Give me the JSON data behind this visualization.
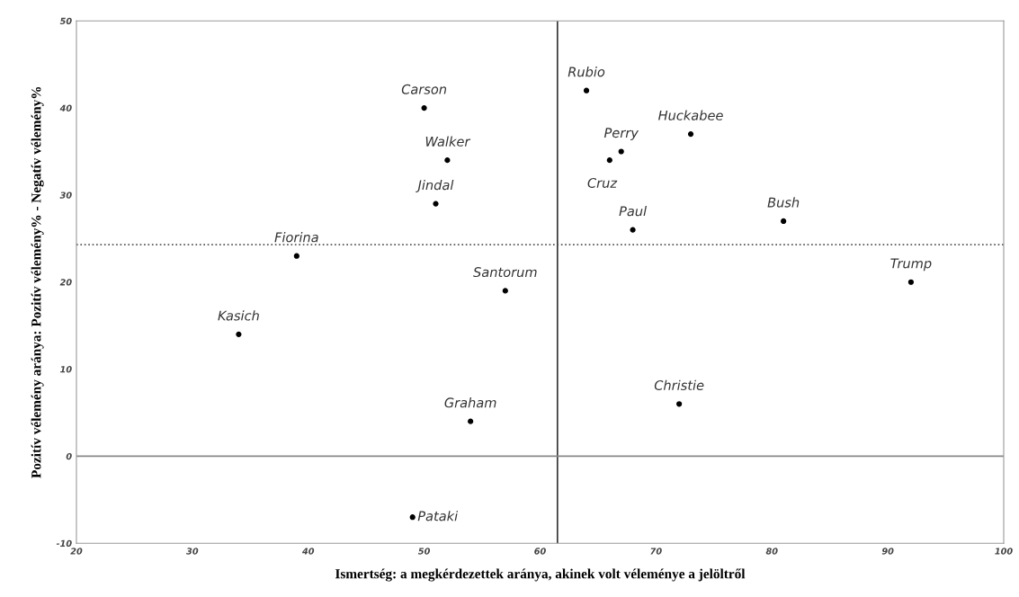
{
  "chart_data": {
    "type": "scatter",
    "xlabel": "Ismertség: a megkérdezettek aránya, akinek volt véleménye a jelöltről",
    "ylabel": "Pozitív vélemény aránya: Pozitív vélemény% - Negatív vélemény%",
    "x": [
      50,
      52,
      51,
      39,
      34,
      57,
      54,
      49,
      64,
      67,
      66,
      73,
      68,
      81,
      92,
      72
    ],
    "series": [
      {
        "color": "#000000",
        "values": [
          40,
          34,
          29,
          23,
          14,
          19,
          4,
          -7,
          42,
          35,
          34,
          37,
          26,
          27,
          20,
          6
        ]
      }
    ],
    "annotations": [
      {
        "text": "Carson",
        "x": 50,
        "y": 40
      },
      {
        "text": "Walker",
        "x": 52,
        "y": 34
      },
      {
        "text": "Jindal",
        "x": 51,
        "y": 29
      },
      {
        "text": "Fiorina",
        "x": 39,
        "y": 23
      },
      {
        "text": "Kasich",
        "x": 34,
        "y": 14
      },
      {
        "text": "Santorum",
        "x": 57,
        "y": 19
      },
      {
        "text": "Graham",
        "x": 54,
        "y": 4
      },
      {
        "text": "Pataki",
        "x": 49,
        "y": -7
      },
      {
        "text": "Rubio",
        "x": 64,
        "y": 42
      },
      {
        "text": "Perry",
        "x": 67,
        "y": 35
      },
      {
        "text": "Cruz",
        "x": 66,
        "y": 34
      },
      {
        "text": "Huckabee",
        "x": 73,
        "y": 37
      },
      {
        "text": "Paul",
        "x": 68,
        "y": 26
      },
      {
        "text": "Bush",
        "x": 81,
        "y": 27
      },
      {
        "text": "Trump",
        "x": 92,
        "y": 20
      },
      {
        "text": "Christie",
        "x": 72,
        "y": 6
      }
    ],
    "xlim": [
      20,
      100
    ],
    "xticks": [
      20,
      30,
      40,
      50,
      60,
      70,
      80,
      90,
      100
    ],
    "ylim": [
      -10,
      50
    ],
    "yticks": [
      -10,
      0,
      10,
      20,
      30,
      40,
      50
    ],
    "ref_lines": [
      {
        "axis": "x",
        "value": 61.5,
        "color": "#333333",
        "line_style": "solid"
      },
      {
        "axis": "y",
        "value": 24.3,
        "color": "#555555",
        "line_style": "dotted"
      },
      {
        "axis": "y",
        "value": 0,
        "color": "#888888",
        "line_style": "solid"
      }
    ],
    "marker": "circle",
    "grid": false,
    "legend": false
  }
}
